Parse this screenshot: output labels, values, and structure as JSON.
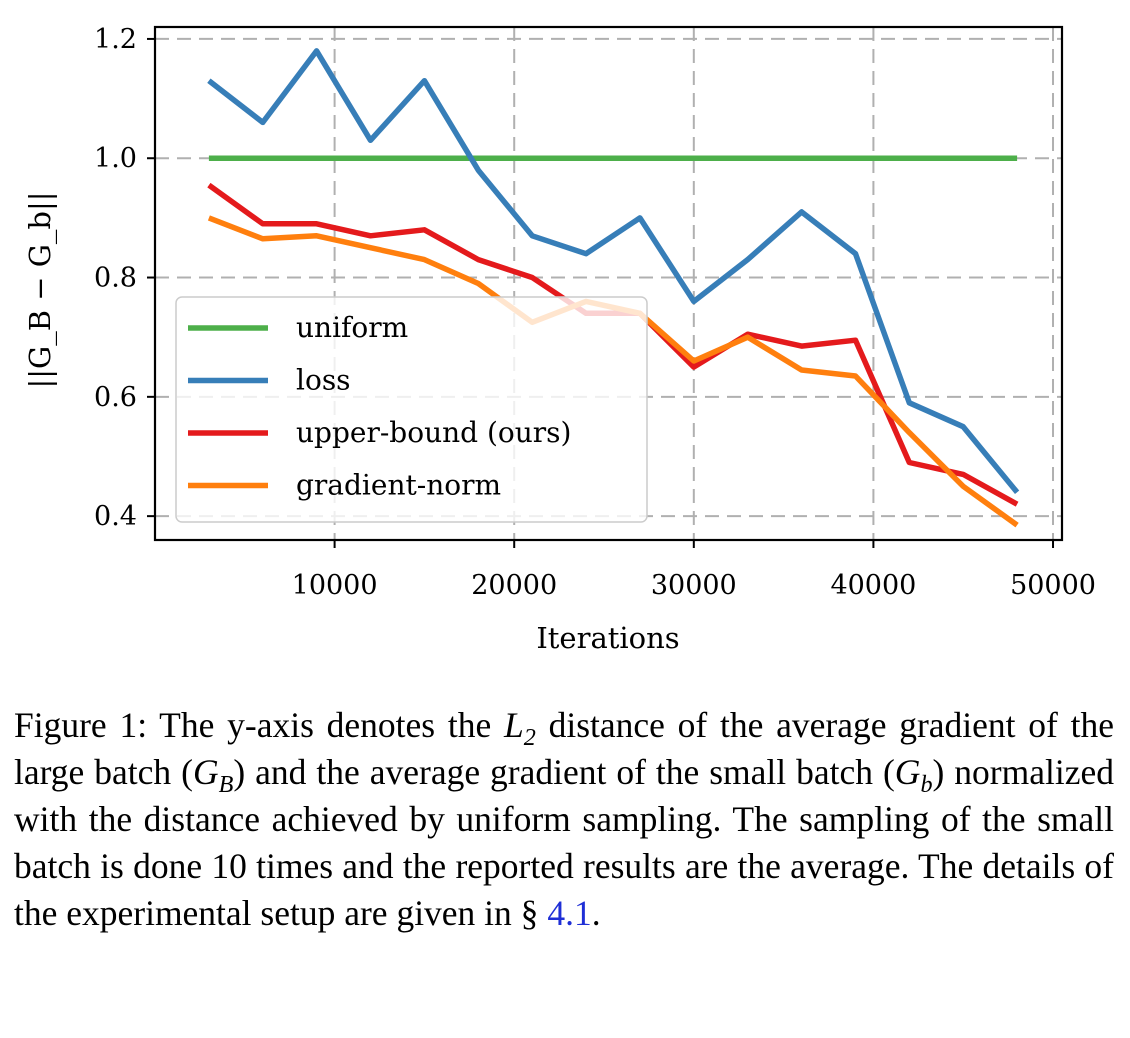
{
  "chart_data": {
    "type": "line",
    "xlabel": "Iterations",
    "ylabel": "||G_B − G_b||",
    "xlim": [
      0,
      50500
    ],
    "ylim": [
      0.36,
      1.22
    ],
    "xticks": [
      10000,
      20000,
      30000,
      40000,
      50000
    ],
    "xtick_labels": [
      "10000",
      "20000",
      "30000",
      "40000",
      "50000"
    ],
    "yticks": [
      0.4,
      0.6,
      0.8,
      1.0,
      1.2
    ],
    "ytick_labels": [
      "0.4",
      "0.6",
      "0.8",
      "1.0",
      "1.2"
    ],
    "grid": true,
    "legend_position": "lower-left",
    "x": [
      3000,
      6000,
      9000,
      12000,
      15000,
      18000,
      21000,
      24000,
      27000,
      30000,
      33000,
      36000,
      39000,
      42000,
      45000,
      48000
    ],
    "series": [
      {
        "name": "uniform",
        "color": "#4daf4a",
        "values": [
          1.0,
          1.0,
          1.0,
          1.0,
          1.0,
          1.0,
          1.0,
          1.0,
          1.0,
          1.0,
          1.0,
          1.0,
          1.0,
          1.0,
          1.0,
          1.0
        ]
      },
      {
        "name": "loss",
        "color": "#377eb8",
        "values": [
          1.13,
          1.06,
          1.18,
          1.03,
          1.13,
          0.98,
          0.87,
          0.84,
          0.9,
          0.76,
          0.83,
          0.91,
          0.84,
          0.59,
          0.55,
          0.44
        ]
      },
      {
        "name": "upper-bound (ours)",
        "color": "#e41a1c",
        "values": [
          0.955,
          0.89,
          0.89,
          0.87,
          0.88,
          0.83,
          0.8,
          0.74,
          0.74,
          0.65,
          0.705,
          0.685,
          0.695,
          0.49,
          0.47,
          0.42
        ]
      },
      {
        "name": "gradient-norm",
        "color": "#ff7f0e",
        "values": [
          0.9,
          0.865,
          0.87,
          0.85,
          0.83,
          0.79,
          0.725,
          0.76,
          0.74,
          0.66,
          0.7,
          0.645,
          0.635,
          0.54,
          0.45,
          0.385
        ]
      }
    ]
  },
  "caption": {
    "part1": "Figure 1: The y-axis denotes the ",
    "math_l": "L",
    "math_l_sub": "2",
    "part2": " distance of the average gradient of the large batch (",
    "math_gb": "G",
    "math_gb_sub": "B",
    "part3": ") and the average gradient of the small batch (",
    "math_gs": "G",
    "math_gs_sub": "b",
    "part4": ") normalized with the distance achieved by uniform sampling. The sampling of the small batch is done 10 times and the reported results are the average. The details of the experimental setup are given in § ",
    "ref": "4.1",
    "part5": "."
  }
}
